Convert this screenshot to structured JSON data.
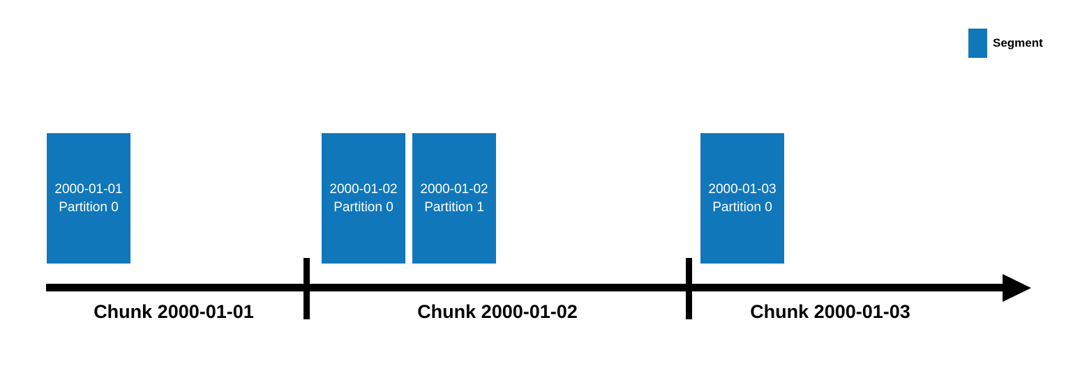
{
  "legend": {
    "label": "Segment",
    "color": "#1177bb"
  },
  "segments": [
    {
      "date": "2000-01-01",
      "partition": "Partition 0"
    },
    {
      "date": "2000-01-02",
      "partition": "Partition 0"
    },
    {
      "date": "2000-01-02",
      "partition": "Partition 1"
    },
    {
      "date": "2000-01-03",
      "partition": "Partition 0"
    }
  ],
  "chunks": [
    "Chunk 2000-01-01",
    "Chunk 2000-01-02",
    "Chunk 2000-01-03"
  ]
}
